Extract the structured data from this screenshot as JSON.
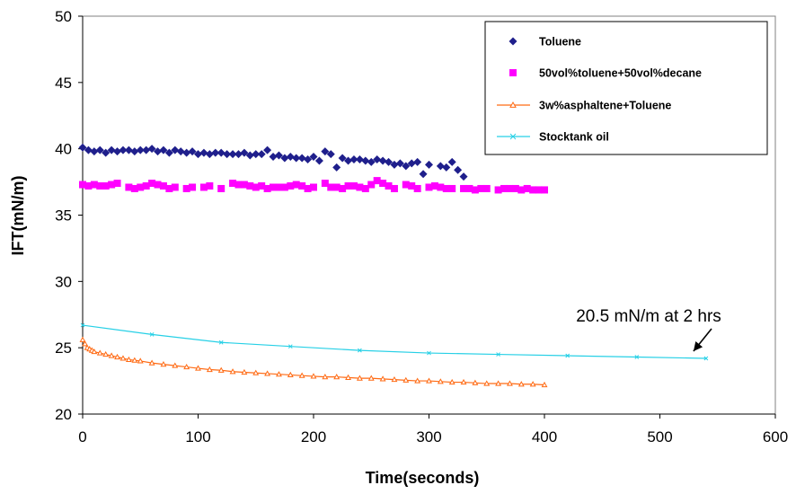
{
  "chart_data": {
    "type": "scatter",
    "title": "",
    "xlabel": "Time(seconds)",
    "ylabel": "IFT(mN/m)",
    "xlim": [
      0,
      600
    ],
    "ylim": [
      20,
      50
    ],
    "xticks": [
      "0",
      "100",
      "200",
      "300",
      "400",
      "500",
      "600"
    ],
    "yticks": [
      "20",
      "25",
      "30",
      "35",
      "40",
      "45",
      "50"
    ],
    "grid": false,
    "legend_placement": "top-right",
    "series": [
      {
        "name": "Toluene",
        "style": "markers",
        "marker": "diamond",
        "color": "#1f1f8c",
        "x": [
          0,
          5,
          10,
          15,
          20,
          25,
          30,
          35,
          40,
          45,
          50,
          55,
          60,
          65,
          70,
          75,
          80,
          85,
          90,
          95,
          100,
          105,
          110,
          115,
          120,
          125,
          130,
          135,
          140,
          145,
          150,
          155,
          160,
          165,
          170,
          175,
          180,
          185,
          190,
          195,
          200,
          205,
          210,
          215,
          220,
          225,
          230,
          235,
          240,
          245,
          250,
          255,
          260,
          265,
          270,
          275,
          280,
          285,
          290,
          295,
          300,
          310,
          315,
          320,
          325,
          330
        ],
        "y": [
          40.1,
          39.9,
          39.8,
          39.9,
          39.7,
          39.9,
          39.8,
          39.9,
          39.9,
          39.8,
          39.9,
          39.9,
          40.0,
          39.8,
          39.9,
          39.7,
          39.9,
          39.8,
          39.7,
          39.8,
          39.6,
          39.7,
          39.6,
          39.7,
          39.7,
          39.6,
          39.6,
          39.6,
          39.7,
          39.5,
          39.6,
          39.6,
          39.9,
          39.4,
          39.5,
          39.3,
          39.4,
          39.3,
          39.3,
          39.2,
          39.4,
          39.1,
          39.8,
          39.6,
          38.6,
          39.3,
          39.1,
          39.2,
          39.2,
          39.1,
          39.0,
          39.2,
          39.1,
          39.0,
          38.8,
          38.9,
          38.7,
          38.9,
          39.0,
          38.1,
          38.8,
          38.7,
          38.6,
          39.0,
          38.4,
          37.9
        ]
      },
      {
        "name": "50vol%toluene+50vol%decane",
        "style": "markers",
        "marker": "square",
        "color": "#ff00ff",
        "x": [
          0,
          5,
          10,
          15,
          20,
          25,
          30,
          40,
          45,
          50,
          55,
          60,
          65,
          70,
          75,
          80,
          90,
          95,
          105,
          110,
          120,
          130,
          135,
          140,
          145,
          150,
          155,
          160,
          165,
          170,
          175,
          180,
          185,
          190,
          195,
          200,
          210,
          215,
          220,
          225,
          230,
          235,
          240,
          245,
          250,
          255,
          260,
          265,
          270,
          280,
          285,
          290,
          300,
          305,
          310,
          315,
          320,
          330,
          335,
          340,
          345,
          350,
          360,
          365,
          370,
          375,
          380,
          385,
          390,
          395,
          400
        ],
        "y": [
          37.3,
          37.2,
          37.3,
          37.2,
          37.2,
          37.3,
          37.4,
          37.1,
          37.0,
          37.1,
          37.2,
          37.4,
          37.3,
          37.2,
          37.0,
          37.1,
          37.0,
          37.1,
          37.1,
          37.2,
          37.0,
          37.4,
          37.3,
          37.3,
          37.2,
          37.1,
          37.2,
          37.0,
          37.1,
          37.1,
          37.1,
          37.2,
          37.3,
          37.2,
          37.0,
          37.1,
          37.4,
          37.1,
          37.1,
          37.0,
          37.2,
          37.2,
          37.1,
          37.0,
          37.3,
          37.6,
          37.4,
          37.2,
          37.0,
          37.3,
          37.2,
          37.0,
          37.1,
          37.2,
          37.1,
          37.0,
          37.0,
          37.0,
          37.0,
          36.9,
          37.0,
          37.0,
          36.9,
          37.0,
          37.0,
          37.0,
          36.9,
          37.0,
          36.9,
          36.9,
          36.9
        ]
      },
      {
        "name": "3w%asphaltene+Toluene",
        "style": "line-markers",
        "marker": "triangle",
        "color": "#ff6a13",
        "x": [
          0,
          2,
          4,
          6,
          8,
          10,
          15,
          20,
          25,
          30,
          35,
          40,
          45,
          50,
          60,
          70,
          80,
          90,
          100,
          110,
          120,
          130,
          140,
          150,
          160,
          170,
          180,
          190,
          200,
          210,
          220,
          230,
          240,
          250,
          260,
          270,
          280,
          290,
          300,
          310,
          320,
          330,
          340,
          350,
          360,
          370,
          380,
          390,
          400
        ],
        "y": [
          25.6,
          25.3,
          25.0,
          24.9,
          24.8,
          24.7,
          24.6,
          24.5,
          24.4,
          24.3,
          24.2,
          24.1,
          24.05,
          24.0,
          23.85,
          23.75,
          23.65,
          23.55,
          23.45,
          23.35,
          23.3,
          23.2,
          23.15,
          23.1,
          23.05,
          23.0,
          22.95,
          22.9,
          22.85,
          22.8,
          22.8,
          22.75,
          22.7,
          22.7,
          22.65,
          22.6,
          22.55,
          22.5,
          22.5,
          22.45,
          22.4,
          22.4,
          22.35,
          22.3,
          22.3,
          22.3,
          22.25,
          22.25,
          22.2
        ]
      },
      {
        "name": "Stocktank oil",
        "style": "line-markers",
        "marker": "cross",
        "color": "#27d0e6",
        "x": [
          0,
          60,
          120,
          180,
          240,
          300,
          360,
          420,
          480,
          540
        ],
        "y": [
          26.7,
          26.0,
          25.4,
          25.1,
          24.8,
          24.6,
          24.5,
          24.4,
          24.3,
          24.2
        ]
      }
    ],
    "annotations": [
      {
        "text": "20.5 mN/m at 2 hrs",
        "arrow_to": [
          540,
          24.2
        ]
      }
    ]
  }
}
